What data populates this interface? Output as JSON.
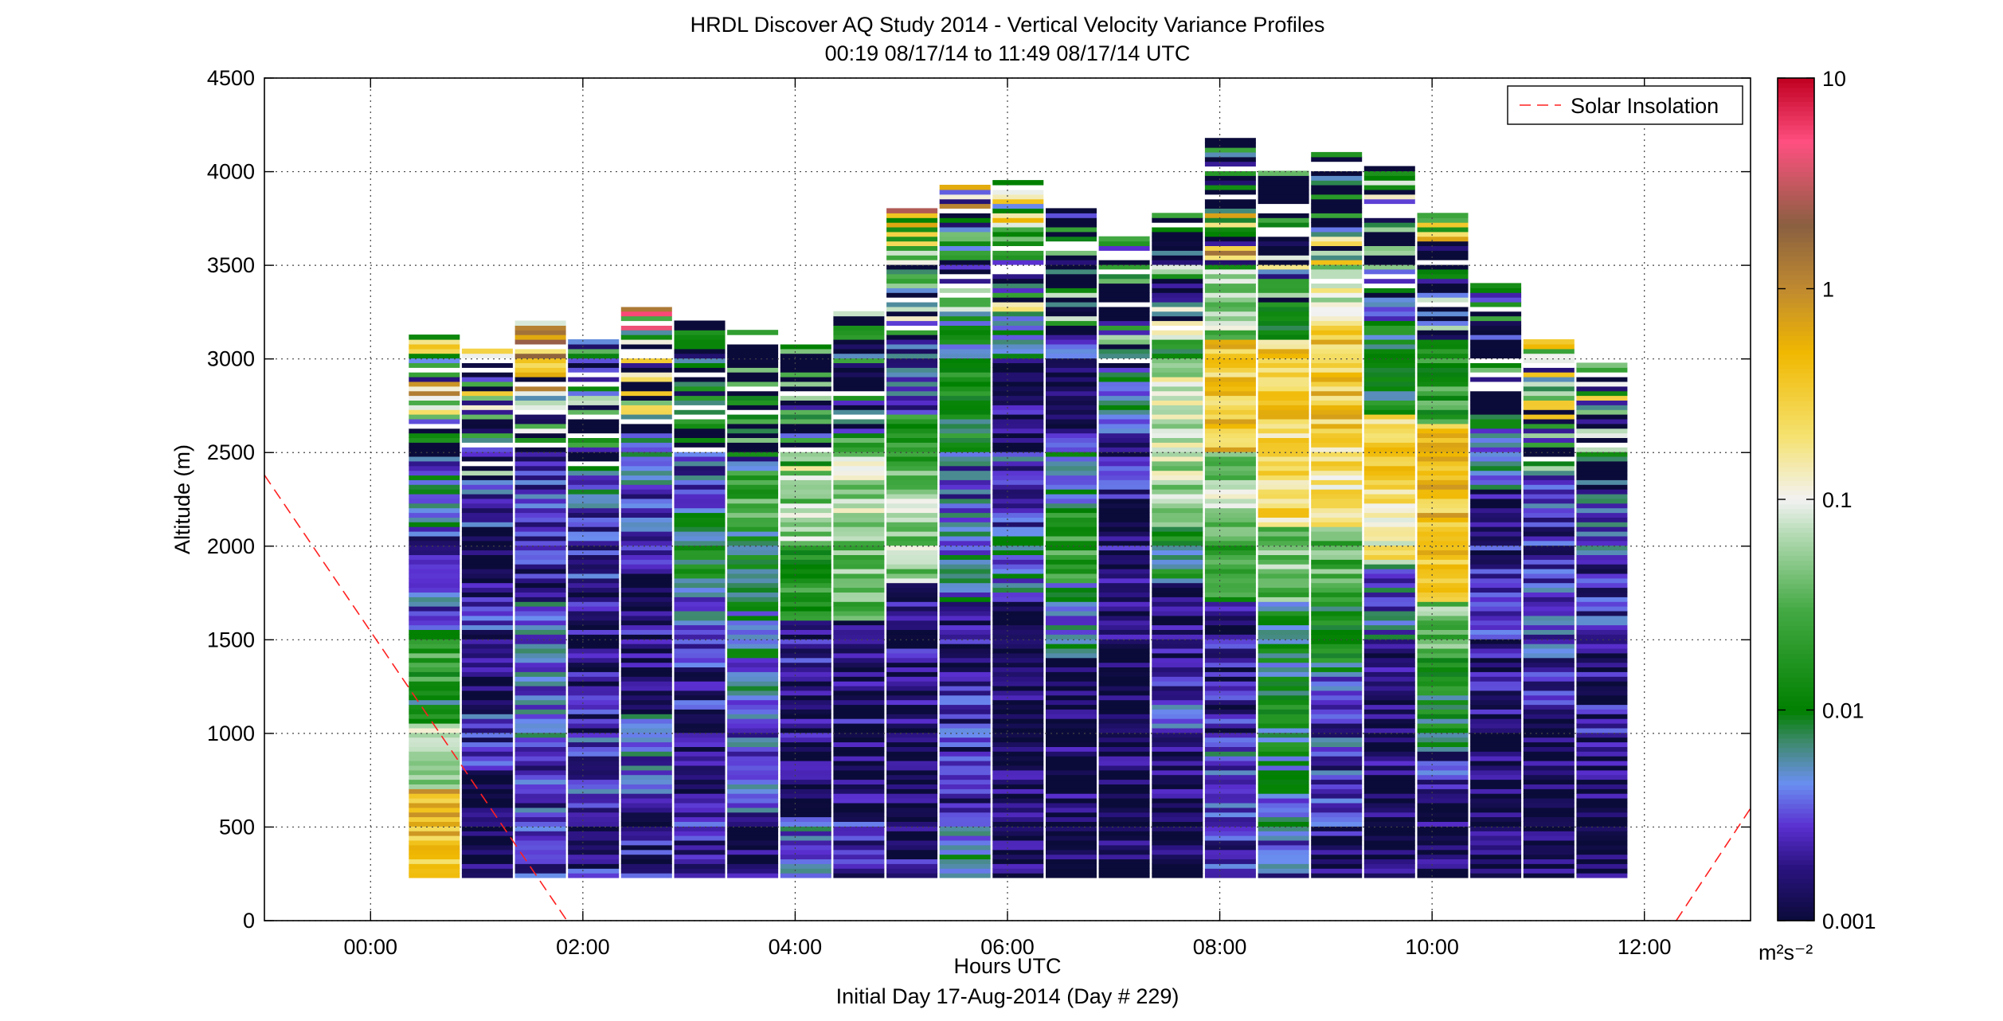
{
  "chart_data": {
    "type": "heatmap",
    "title": "HRDL Discover AQ Study 2014 - Vertical Velocity Variance Profiles",
    "subtitle": "00:19 08/17/14 to 11:49 08/17/14  UTC",
    "xlabel": "Hours UTC",
    "xlabel2": "Initial Day 17-Aug-2014 (Day # 229)",
    "ylabel": "Altitude (m)",
    "xlim": [
      -1.0,
      13.0
    ],
    "ylim": [
      0,
      4500
    ],
    "x_ticks": [
      0,
      2,
      4,
      6,
      8,
      10,
      12
    ],
    "x_tick_labels": [
      "00:00",
      "02:00",
      "04:00",
      "06:00",
      "08:00",
      "10:00",
      "12:00"
    ],
    "y_ticks": [
      0,
      500,
      1000,
      1500,
      2000,
      2500,
      3000,
      3500,
      4000,
      4500
    ],
    "y_tick_labels": [
      "0",
      "500",
      "1000",
      "1500",
      "2000",
      "2500",
      "3000",
      "3500",
      "4000",
      "4500"
    ],
    "grid": true,
    "colorbar": {
      "scale": "log",
      "range": [
        0.001,
        10
      ],
      "ticks": [
        0.001,
        0.01,
        0.1,
        1,
        10
      ],
      "tick_labels": [
        "0.001",
        "0.01",
        "0.1",
        "1",
        "10"
      ],
      "unit": "m²s⁻²",
      "stops": [
        {
          "v": 0.001,
          "color": "#0b0b3a"
        },
        {
          "v": 0.0018,
          "color": "#2a1380"
        },
        {
          "v": 0.0028,
          "color": "#5a2fd0"
        },
        {
          "v": 0.0045,
          "color": "#6a8ff0"
        },
        {
          "v": 0.007,
          "color": "#3f8a70"
        },
        {
          "v": 0.01,
          "color": "#008000"
        },
        {
          "v": 0.03,
          "color": "#44aa44"
        },
        {
          "v": 0.07,
          "color": "#b8dcb8"
        },
        {
          "v": 0.1,
          "color": "#f2f2f2"
        },
        {
          "v": 0.2,
          "color": "#f5e270"
        },
        {
          "v": 0.5,
          "color": "#f0b800"
        },
        {
          "v": 1,
          "color": "#c08a30"
        },
        {
          "v": 2,
          "color": "#8a6040"
        },
        {
          "v": 5,
          "color": "#ff4f80"
        },
        {
          "v": 10,
          "color": "#c00020"
        }
      ]
    },
    "legend": {
      "position": "top-right",
      "entries": [
        "Solar Insolation"
      ]
    },
    "insolation_line": {
      "name": "Solar Insolation",
      "color": "#ff2020",
      "segments": [
        [
          [
            -1.0,
            2380
          ],
          [
            1.85,
            0
          ]
        ],
        [
          [
            12.3,
            0
          ],
          [
            13.0,
            600
          ]
        ]
      ]
    },
    "profiles": [
      {
        "t": 0.6,
        "top": 3130,
        "bands": [
          [
            230,
            450,
            0.35
          ],
          [
            450,
            700,
            0.45
          ],
          [
            700,
            900,
            0.04
          ],
          [
            900,
            1050,
            0.09
          ],
          [
            1050,
            1250,
            0.012
          ],
          [
            1250,
            1550,
            0.02
          ],
          [
            1550,
            1800,
            0.004
          ],
          [
            1800,
            2100,
            0.0022
          ],
          [
            2100,
            2400,
            0.006
          ],
          [
            2400,
            2650,
            0.003
          ],
          [
            2650,
            3130,
            0.05
          ]
        ]
      },
      {
        "t": 1.1,
        "top": 3050,
        "bands": [
          [
            230,
            800,
            0.0012
          ],
          [
            800,
            1100,
            0.0025
          ],
          [
            1100,
            1500,
            0.0012
          ],
          [
            1500,
            1800,
            0.0022
          ],
          [
            1800,
            2100,
            0.0011
          ],
          [
            2100,
            2500,
            0.003
          ],
          [
            2500,
            2800,
            0.004
          ],
          [
            2800,
            3050,
            0.015
          ]
        ]
      },
      {
        "t": 1.6,
        "top": 3200,
        "bands": [
          [
            230,
            550,
            0.0022
          ],
          [
            550,
            900,
            0.0028
          ],
          [
            900,
            1300,
            0.004
          ],
          [
            1300,
            1700,
            0.0038
          ],
          [
            1700,
            2100,
            0.0018
          ],
          [
            2100,
            2500,
            0.0025
          ],
          [
            2500,
            2800,
            0.004
          ],
          [
            2800,
            3200,
            0.07
          ]
        ]
      },
      {
        "t": 2.1,
        "top": 3100,
        "bands": [
          [
            230,
            600,
            0.0022
          ],
          [
            600,
            1000,
            0.003
          ],
          [
            1000,
            1400,
            0.0022
          ],
          [
            1400,
            1800,
            0.0016
          ],
          [
            1800,
            2200,
            0.0022
          ],
          [
            2200,
            2600,
            0.0045
          ],
          [
            2600,
            3100,
            0.002
          ]
        ]
      },
      {
        "t": 2.6,
        "top": 3300,
        "bands": [
          [
            230,
            650,
            0.0018
          ],
          [
            650,
            1100,
            0.004
          ],
          [
            1100,
            1500,
            0.0014
          ],
          [
            1500,
            1900,
            0.0018
          ],
          [
            1900,
            2300,
            0.0025
          ],
          [
            2300,
            2700,
            0.004
          ],
          [
            2700,
            3000,
            0.012
          ],
          [
            3000,
            3300,
            0.2
          ]
        ]
      },
      {
        "t": 3.1,
        "top": 3200,
        "bands": [
          [
            230,
            600,
            0.0022
          ],
          [
            600,
            1000,
            0.0015
          ],
          [
            1000,
            1400,
            0.0022
          ],
          [
            1400,
            1800,
            0.004
          ],
          [
            1800,
            2200,
            0.009
          ],
          [
            2200,
            2600,
            0.003
          ],
          [
            2600,
            3200,
            0.0015
          ]
        ]
      },
      {
        "t": 3.6,
        "top": 3150,
        "bands": [
          [
            230,
            550,
            0.0012
          ],
          [
            550,
            900,
            0.0028
          ],
          [
            900,
            1400,
            0.004
          ],
          [
            1400,
            1700,
            0.006
          ],
          [
            1700,
            2100,
            0.01
          ],
          [
            2100,
            2400,
            0.025
          ],
          [
            2400,
            2700,
            0.003
          ],
          [
            2700,
            3150,
            0.0015
          ]
        ]
      },
      {
        "t": 4.1,
        "top": 3100,
        "bands": [
          [
            230,
            550,
            0.004
          ],
          [
            550,
            900,
            0.0012
          ],
          [
            900,
            1200,
            0.0014
          ],
          [
            1200,
            1600,
            0.0018
          ],
          [
            1600,
            2000,
            0.02
          ],
          [
            2000,
            2500,
            0.05
          ],
          [
            2500,
            2900,
            0.003
          ],
          [
            2900,
            3100,
            0.0014
          ]
        ]
      },
      {
        "t": 4.6,
        "top": 3250,
        "bands": [
          [
            230,
            550,
            0.0024
          ],
          [
            550,
            900,
            0.0013
          ],
          [
            900,
            1300,
            0.0015
          ],
          [
            1300,
            1600,
            0.0014
          ],
          [
            1600,
            2100,
            0.04
          ],
          [
            2100,
            2500,
            0.06
          ],
          [
            2500,
            2800,
            0.015
          ],
          [
            2800,
            3250,
            0.003
          ]
        ]
      },
      {
        "t": 5.1,
        "top": 3800,
        "bands": [
          [
            230,
            550,
            0.0015
          ],
          [
            550,
            900,
            0.0013
          ],
          [
            900,
            1300,
            0.0014
          ],
          [
            1300,
            1800,
            0.0016
          ],
          [
            1800,
            2400,
            0.05
          ],
          [
            2400,
            2700,
            0.015
          ],
          [
            2700,
            3100,
            0.003
          ],
          [
            3100,
            3500,
            0.005
          ],
          [
            3500,
            3800,
            0.25
          ]
        ]
      },
      {
        "t": 5.6,
        "top": 3920,
        "bands": [
          [
            230,
            500,
            0.006
          ],
          [
            500,
            800,
            0.0016
          ],
          [
            800,
            1200,
            0.0022
          ],
          [
            1200,
            1700,
            0.0016
          ],
          [
            1700,
            2100,
            0.005
          ],
          [
            2100,
            2500,
            0.0035
          ],
          [
            2500,
            3000,
            0.012
          ],
          [
            3000,
            3500,
            0.008
          ],
          [
            3500,
            3920,
            0.05
          ]
        ]
      },
      {
        "t": 6.1,
        "top": 3950,
        "bands": [
          [
            230,
            800,
            0.0012
          ],
          [
            800,
            1300,
            0.0011
          ],
          [
            1300,
            1700,
            0.0012
          ],
          [
            1700,
            2100,
            0.005
          ],
          [
            2100,
            2500,
            0.003
          ],
          [
            2500,
            3000,
            0.0015
          ],
          [
            3000,
            3500,
            0.006
          ],
          [
            3500,
            3950,
            0.015
          ]
        ]
      },
      {
        "t": 6.6,
        "top": 3800,
        "bands": [
          [
            230,
            600,
            0.0011
          ],
          [
            600,
            1000,
            0.0014
          ],
          [
            1000,
            1400,
            0.0012
          ],
          [
            1400,
            1800,
            0.005
          ],
          [
            1800,
            2200,
            0.02
          ],
          [
            2200,
            2600,
            0.006
          ],
          [
            2600,
            3000,
            0.0015
          ],
          [
            3000,
            3800,
            0.003
          ]
        ]
      },
      {
        "t": 7.1,
        "top": 3650,
        "bands": [
          [
            230,
            600,
            0.0011
          ],
          [
            600,
            1000,
            0.0012
          ],
          [
            1000,
            1400,
            0.0011
          ],
          [
            1400,
            1800,
            0.0013
          ],
          [
            1800,
            2200,
            0.0014
          ],
          [
            2200,
            2600,
            0.0018
          ],
          [
            2600,
            3000,
            0.006
          ],
          [
            3000,
            3650,
            0.002
          ]
        ]
      },
      {
        "t": 7.6,
        "top": 3780,
        "bands": [
          [
            230,
            600,
            0.0011
          ],
          [
            600,
            1000,
            0.0012
          ],
          [
            1000,
            1400,
            0.003
          ],
          [
            1400,
            1800,
            0.0015
          ],
          [
            1800,
            2100,
            0.01
          ],
          [
            2100,
            2600,
            0.07
          ],
          [
            2600,
            3000,
            0.08
          ],
          [
            3000,
            3780,
            0.015
          ]
        ]
      },
      {
        "t": 8.1,
        "top": 4160,
        "bands": [
          [
            230,
            500,
            0.0022
          ],
          [
            500,
            900,
            0.004
          ],
          [
            900,
            1300,
            0.0018
          ],
          [
            1300,
            1700,
            0.0016
          ],
          [
            1700,
            2100,
            0.025
          ],
          [
            2100,
            2500,
            0.06
          ],
          [
            2500,
            3100,
            0.35
          ],
          [
            3100,
            3800,
            0.05
          ],
          [
            3800,
            4160,
            0.0015
          ]
        ]
      },
      {
        "t": 8.6,
        "top": 4000,
        "bands": [
          [
            230,
            500,
            0.003
          ],
          [
            500,
            900,
            0.006
          ],
          [
            900,
            1300,
            0.01
          ],
          [
            1300,
            1700,
            0.008
          ],
          [
            1700,
            2100,
            0.04
          ],
          [
            2100,
            2600,
            0.25
          ],
          [
            2600,
            3100,
            0.3
          ],
          [
            3100,
            3600,
            0.015
          ],
          [
            3600,
            4000,
            0.0015
          ]
        ]
      },
      {
        "t": 9.1,
        "top": 4100,
        "bands": [
          [
            230,
            500,
            0.0015
          ],
          [
            500,
            900,
            0.0025
          ],
          [
            900,
            1300,
            0.003
          ],
          [
            1300,
            1700,
            0.01
          ],
          [
            1700,
            2100,
            0.03
          ],
          [
            2100,
            2600,
            0.2
          ],
          [
            2600,
            3200,
            0.35
          ],
          [
            3200,
            3700,
            0.1
          ],
          [
            3700,
            4100,
            0.0015
          ]
        ]
      },
      {
        "t": 9.6,
        "top": 4020,
        "bands": [
          [
            230,
            600,
            0.0011
          ],
          [
            600,
            1000,
            0.0013
          ],
          [
            1000,
            1500,
            0.0014
          ],
          [
            1500,
            1900,
            0.004
          ],
          [
            1900,
            2300,
            0.15
          ],
          [
            2300,
            2700,
            0.3
          ],
          [
            2700,
            3200,
            0.01
          ],
          [
            3200,
            3700,
            0.003
          ],
          [
            3700,
            4020,
            0.02
          ]
        ]
      },
      {
        "t": 10.1,
        "top": 3780,
        "bands": [
          [
            230,
            700,
            0.0012
          ],
          [
            700,
            900,
            0.0025
          ],
          [
            900,
            1400,
            0.012
          ],
          [
            1400,
            1700,
            0.04
          ],
          [
            1700,
            2100,
            0.35
          ],
          [
            2100,
            2650,
            0.4
          ],
          [
            2650,
            3100,
            0.02
          ],
          [
            3100,
            3500,
            0.003
          ],
          [
            3500,
            3780,
            0.05
          ]
        ]
      },
      {
        "t": 10.6,
        "top": 3400,
        "bands": [
          [
            230,
            700,
            0.0011
          ],
          [
            700,
            1100,
            0.0012
          ],
          [
            1100,
            1500,
            0.0015
          ],
          [
            1500,
            1900,
            0.0035
          ],
          [
            1900,
            2300,
            0.0018
          ],
          [
            2300,
            2900,
            0.006
          ],
          [
            2900,
            3400,
            0.0015
          ]
        ]
      },
      {
        "t": 11.1,
        "top": 3100,
        "bands": [
          [
            230,
            600,
            0.0011
          ],
          [
            600,
            1000,
            0.0012
          ],
          [
            1000,
            1400,
            0.0022
          ],
          [
            1400,
            1800,
            0.003
          ],
          [
            1800,
            2200,
            0.0022
          ],
          [
            2200,
            2600,
            0.003
          ],
          [
            2600,
            3100,
            0.015
          ]
        ]
      },
      {
        "t": 11.6,
        "top": 2980,
        "bands": [
          [
            230,
            600,
            0.0011
          ],
          [
            600,
            1000,
            0.0013
          ],
          [
            1000,
            1500,
            0.0018
          ],
          [
            1500,
            1900,
            0.0025
          ],
          [
            1900,
            2300,
            0.004
          ],
          [
            2300,
            2700,
            0.0025
          ],
          [
            2700,
            2980,
            0.02
          ]
        ]
      }
    ]
  }
}
